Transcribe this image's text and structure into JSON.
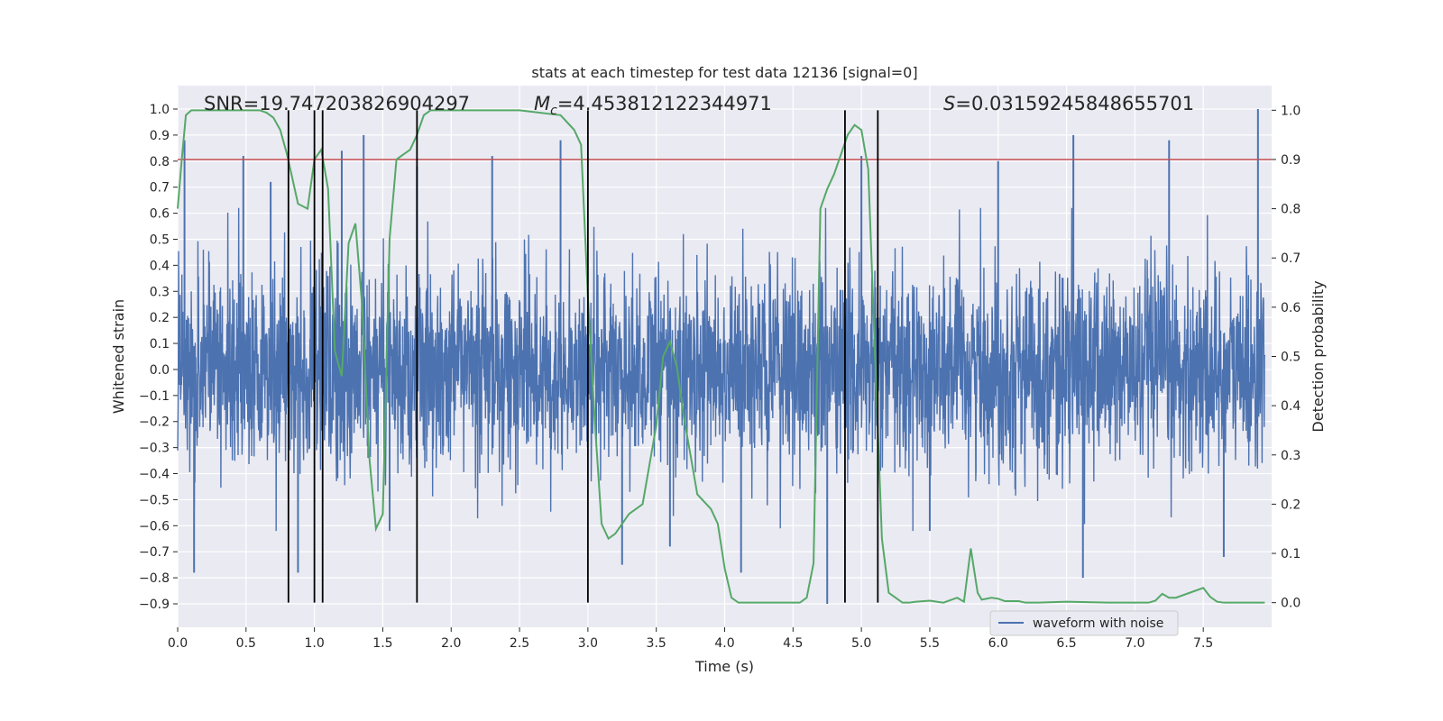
{
  "chart_data": {
    "type": "line",
    "title": "stats at each timestep for test data 12136 [signal=0]",
    "xlabel": "Time (s)",
    "ylabel_left": "Whitened strain",
    "ylabel_right": "Detection probability",
    "xlim": [
      0.0,
      8.0
    ],
    "ylim_left": [
      -0.99,
      1.09
    ],
    "ylim_right": [
      -0.05,
      1.05
    ],
    "x_ticks": [
      "0.0",
      "0.5",
      "1.0",
      "1.5",
      "2.0",
      "2.5",
      "3.0",
      "3.5",
      "4.0",
      "4.5",
      "5.0",
      "5.5",
      "6.0",
      "6.5",
      "7.0",
      "7.5"
    ],
    "y_ticks_left": [
      "1.0",
      "0.9",
      "0.8",
      "0.7",
      "0.6",
      "0.5",
      "0.4",
      "0.3",
      "0.2",
      "0.1",
      "0.0",
      "−0.1",
      "−0.2",
      "−0.3",
      "−0.4",
      "−0.5",
      "−0.6",
      "−0.7",
      "−0.8",
      "−0.9"
    ],
    "y_ticks_right": [
      "1.0",
      "0.9",
      "0.8",
      "0.7",
      "0.6",
      "0.5",
      "0.4",
      "0.3",
      "0.2",
      "0.1",
      "0.0"
    ],
    "grid": true,
    "annotations": {
      "snr": "SNR=19.747203826904297",
      "mc_symbol": "M",
      "mc_sub": "c",
      "mc_value": "=4.453812122344971",
      "s_symbol": "S",
      "s_value": "=0.03159245848655701"
    },
    "threshold": 0.9,
    "vertical_lines_x": [
      0.81,
      1.0,
      1.06,
      1.75,
      3.0,
      4.88,
      5.12
    ],
    "series": [
      {
        "name": "waveform with noise",
        "axis": "left",
        "color": "#4c72b0",
        "amplitude_envelope": 0.45,
        "spikes": [
          {
            "x": 0.05,
            "y": 0.88
          },
          {
            "x": 0.12,
            "y": -0.78
          },
          {
            "x": 0.48,
            "y": 0.82
          },
          {
            "x": 0.68,
            "y": 0.72
          },
          {
            "x": 0.88,
            "y": -0.78
          },
          {
            "x": 1.2,
            "y": 0.84
          },
          {
            "x": 1.36,
            "y": 0.9
          },
          {
            "x": 1.55,
            "y": -0.62
          },
          {
            "x": 1.75,
            "y": 0.78
          },
          {
            "x": 2.3,
            "y": 0.82
          },
          {
            "x": 2.8,
            "y": 0.88
          },
          {
            "x": 3.25,
            "y": -0.75
          },
          {
            "x": 3.6,
            "y": -0.68
          },
          {
            "x": 4.12,
            "y": -0.78
          },
          {
            "x": 4.75,
            "y": -0.9
          },
          {
            "x": 5.0,
            "y": 0.82
          },
          {
            "x": 5.5,
            "y": -0.62
          },
          {
            "x": 6.0,
            "y": 0.8
          },
          {
            "x": 6.55,
            "y": 0.9
          },
          {
            "x": 6.62,
            "y": -0.8
          },
          {
            "x": 7.25,
            "y": 0.88
          },
          {
            "x": 7.65,
            "y": -0.72
          },
          {
            "x": 7.9,
            "y": 1.0
          }
        ]
      },
      {
        "name": "",
        "axis": "right",
        "color": "#55a868",
        "x": [
          0.0,
          0.03,
          0.06,
          0.1,
          0.2,
          0.4,
          0.6,
          0.65,
          0.7,
          0.75,
          0.8,
          0.88,
          0.95,
          1.0,
          1.05,
          1.1,
          1.15,
          1.2,
          1.25,
          1.3,
          1.35,
          1.4,
          1.45,
          1.5,
          1.55,
          1.6,
          1.65,
          1.7,
          1.75,
          1.8,
          1.85,
          1.9,
          2.0,
          2.2,
          2.5,
          2.8,
          2.9,
          2.95,
          3.0,
          3.05,
          3.1,
          3.15,
          3.2,
          3.25,
          3.3,
          3.4,
          3.5,
          3.55,
          3.6,
          3.65,
          3.7,
          3.8,
          3.9,
          3.95,
          4.0,
          4.05,
          4.1,
          4.2,
          4.4,
          4.55,
          4.6,
          4.65,
          4.7,
          4.75,
          4.8,
          4.85,
          4.9,
          4.95,
          5.0,
          5.05,
          5.1,
          5.15,
          5.2,
          5.25,
          5.3,
          5.35,
          5.4,
          5.5,
          5.6,
          5.7,
          5.75,
          5.8,
          5.85,
          5.88,
          5.95,
          6.0,
          6.05,
          6.15,
          6.2,
          6.3,
          6.5,
          6.8,
          7.0,
          7.1,
          7.15,
          7.2,
          7.25,
          7.3,
          7.4,
          7.5,
          7.55,
          7.6,
          7.65,
          7.75,
          7.95
        ],
        "y": [
          0.8,
          0.9,
          0.99,
          1.0,
          1.0,
          1.0,
          1.0,
          0.995,
          0.985,
          0.96,
          0.91,
          0.81,
          0.8,
          0.9,
          0.92,
          0.84,
          0.51,
          0.46,
          0.73,
          0.77,
          0.6,
          0.3,
          0.15,
          0.18,
          0.74,
          0.9,
          0.91,
          0.92,
          0.95,
          0.99,
          1.0,
          1.0,
          1.0,
          1.0,
          1.0,
          0.99,
          0.96,
          0.93,
          0.62,
          0.37,
          0.16,
          0.13,
          0.14,
          0.16,
          0.18,
          0.2,
          0.36,
          0.5,
          0.53,
          0.48,
          0.38,
          0.22,
          0.19,
          0.16,
          0.07,
          0.01,
          0.0,
          0.0,
          0.0,
          0.0,
          0.01,
          0.08,
          0.8,
          0.84,
          0.87,
          0.91,
          0.95,
          0.97,
          0.96,
          0.88,
          0.5,
          0.13,
          0.02,
          0.01,
          0.0,
          0.0,
          0.002,
          0.004,
          0.0,
          0.01,
          0.002,
          0.11,
          0.02,
          0.006,
          0.01,
          0.008,
          0.003,
          0.003,
          0.0,
          0.0,
          0.002,
          0.0,
          0.0,
          0.0,
          0.004,
          0.018,
          0.01,
          0.01,
          0.02,
          0.03,
          0.012,
          0.002,
          0.0,
          0.0,
          0.0
        ]
      }
    ],
    "legend": {
      "position": "lower-right",
      "label": "waveform with noise"
    }
  },
  "colors": {
    "plot_bg": "#eaeaf2",
    "grid": "#ffffff",
    "strain": "#4c72b0",
    "probability": "#55a868",
    "threshold": "#c44e52",
    "vline": "#000000"
  }
}
